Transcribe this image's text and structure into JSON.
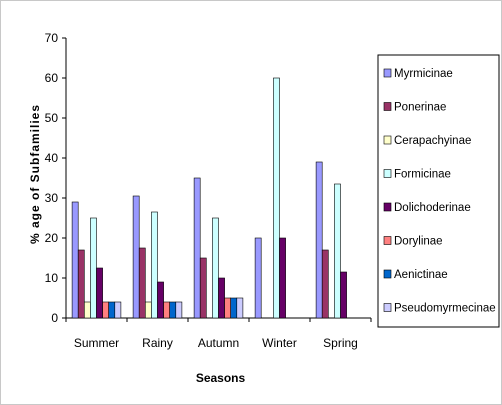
{
  "chart_data": {
    "type": "bar",
    "xlabel": "Seasons",
    "ylabel": "% age of Subfamilies",
    "ylim": [
      0,
      70
    ],
    "yticks": [
      0,
      10,
      20,
      30,
      40,
      50,
      60,
      70
    ],
    "grid": false,
    "legend_position": "right",
    "categories": [
      "Summer",
      "Rainy",
      "Autumn",
      "Winter",
      "Spring"
    ],
    "series": [
      {
        "name": "Myrmicinae",
        "color": "#9999ff",
        "values": [
          29,
          30.5,
          35,
          20,
          39
        ]
      },
      {
        "name": "Ponerinae",
        "color": "#993366",
        "values": [
          17,
          17.5,
          15,
          0,
          17
        ]
      },
      {
        "name": "Cerapachyinae",
        "color": "#ffffcc",
        "values": [
          4,
          4,
          0,
          0,
          0
        ]
      },
      {
        "name": "Formicinae",
        "color": "#ccffff",
        "values": [
          25,
          26.5,
          25,
          60,
          33.5
        ]
      },
      {
        "name": "Dolichoderinae",
        "color": "#660066",
        "values": [
          12.5,
          9,
          10,
          20,
          11.5
        ]
      },
      {
        "name": "Dorylinae",
        "color": "#ff8080",
        "values": [
          4,
          4,
          5,
          0,
          0
        ]
      },
      {
        "name": "Aenictinae",
        "color": "#0066cc",
        "values": [
          4,
          4,
          5,
          0,
          0
        ]
      },
      {
        "name": "Pseudomyrmecinae",
        "color": "#ccccff",
        "values": [
          4,
          4,
          5,
          0,
          0
        ]
      }
    ]
  }
}
